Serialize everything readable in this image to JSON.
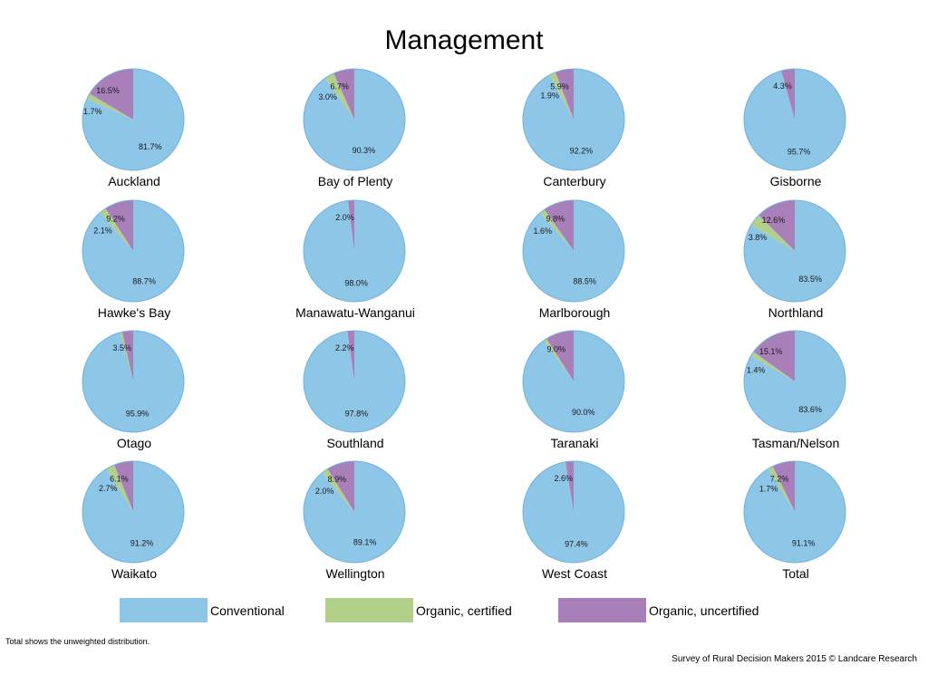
{
  "title": "Management",
  "footnote": "Total shows the unweighted distribution.",
  "credit": "Survey of Rural Decision Makers 2015 © Landcare Research",
  "colors": {
    "conventional": "#8ec6e8",
    "organic_certified": "#b2d08a",
    "organic_uncertified": "#a97fb9"
  },
  "chart_data": {
    "type": "pie",
    "title": "Management",
    "legend_position": "bottom",
    "legend": [
      "Conventional",
      "Organic, certified",
      "Organic, uncertified"
    ],
    "charts": [
      {
        "name": "Auckland",
        "values": [
          81.7,
          1.7,
          16.5
        ],
        "labels": [
          "81.7%",
          "1.7%",
          "16.5%"
        ]
      },
      {
        "name": "Bay of Plenty",
        "values": [
          90.3,
          3.0,
          6.7
        ],
        "labels": [
          "90.3%",
          "3.0%",
          "6.7%"
        ]
      },
      {
        "name": "Canterbury",
        "values": [
          92.2,
          1.9,
          5.9
        ],
        "labels": [
          "92.2%",
          "1.9%",
          "5.9%"
        ]
      },
      {
        "name": "Gisborne",
        "values": [
          95.7,
          0,
          4.3
        ],
        "labels": [
          "95.7%",
          "",
          "4.3%"
        ]
      },
      {
        "name": "Hawke's Bay",
        "values": [
          88.7,
          2.1,
          9.2
        ],
        "labels": [
          "88.7%",
          "2.1%",
          "9.2%"
        ]
      },
      {
        "name": "Manawatu-Wanganui",
        "values": [
          98.0,
          0,
          2.0
        ],
        "labels": [
          "98.0%",
          "",
          "2.0%"
        ]
      },
      {
        "name": "Marlborough",
        "values": [
          88.5,
          1.6,
          9.8
        ],
        "labels": [
          "88.5%",
          "1.6%",
          "9.8%"
        ]
      },
      {
        "name": "Northland",
        "values": [
          83.5,
          3.8,
          12.6
        ],
        "labels": [
          "83.5%",
          "3.8%",
          "12.6%"
        ]
      },
      {
        "name": "Otago",
        "values": [
          95.9,
          0.6,
          3.5
        ],
        "labels": [
          "95.9%",
          "",
          "3.5%"
        ]
      },
      {
        "name": "Southland",
        "values": [
          97.8,
          0,
          2.2
        ],
        "labels": [
          "97.8%",
          "",
          "2.2%"
        ]
      },
      {
        "name": "Taranaki",
        "values": [
          90.0,
          1.0,
          9.0
        ],
        "labels": [
          "90.0%",
          "",
          "9.0%"
        ]
      },
      {
        "name": "Tasman/Nelson",
        "values": [
          83.6,
          1.4,
          15.1
        ],
        "labels": [
          "83.6%",
          "1.4%",
          "15.1%"
        ]
      },
      {
        "name": "Waikato",
        "values": [
          91.2,
          2.7,
          6.1
        ],
        "labels": [
          "91.2%",
          "2.7%",
          "6.1%"
        ]
      },
      {
        "name": "Wellington",
        "values": [
          89.1,
          2.0,
          8.9
        ],
        "labels": [
          "89.1%",
          "2.0%",
          "8.9%"
        ]
      },
      {
        "name": "West Coast",
        "values": [
          97.4,
          0,
          2.6
        ],
        "labels": [
          "97.4%",
          "",
          "2.6%"
        ]
      },
      {
        "name": "Total",
        "values": [
          91.1,
          1.7,
          7.2
        ],
        "labels": [
          "91.1%",
          "1.7%",
          "7.2%"
        ]
      }
    ]
  }
}
